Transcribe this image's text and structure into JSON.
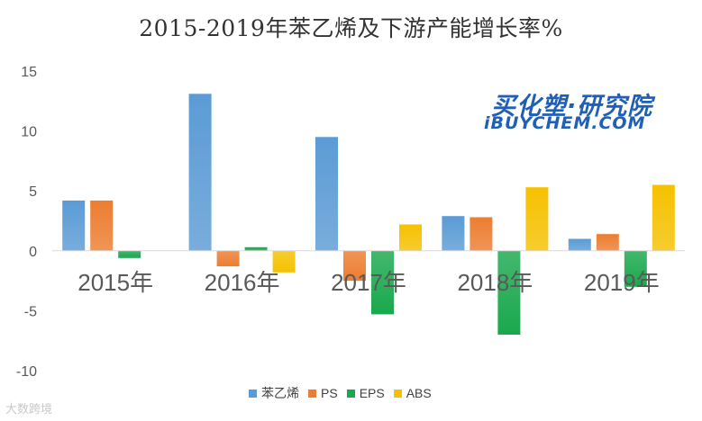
{
  "chart_data": {
    "type": "bar",
    "title": "2015-2019年苯乙烯及下游产能增长率%",
    "categories": [
      "2015年",
      "2016年",
      "2017年",
      "2018年",
      "2019年"
    ],
    "series": [
      {
        "name": "苯乙烯",
        "color": "#5b9bd5",
        "values": [
          4.2,
          13.1,
          9.5,
          2.9,
          1.0
        ]
      },
      {
        "name": "PS",
        "color": "#ed7d31",
        "values": [
          4.2,
          -1.3,
          -2.5,
          2.8,
          1.4
        ]
      },
      {
        "name": "EPS",
        "color": "#1aa84d",
        "values": [
          -0.6,
          0.3,
          -5.3,
          -7.0,
          -3.0
        ]
      },
      {
        "name": "ABS",
        "color": "#f5c100",
        "values": [
          0.0,
          -1.8,
          2.2,
          5.3,
          5.5
        ]
      }
    ],
    "ylim": [
      -10,
      15
    ],
    "yticks": [
      15,
      10,
      5,
      0,
      -5,
      -10
    ],
    "xlabel": "",
    "ylabel": "",
    "grid": false,
    "legend": "bottom"
  },
  "logo": {
    "cn_text": "买化塑·研究院",
    "en_text": "iBUYCHEM.COM"
  },
  "watermark": "大数跨境"
}
